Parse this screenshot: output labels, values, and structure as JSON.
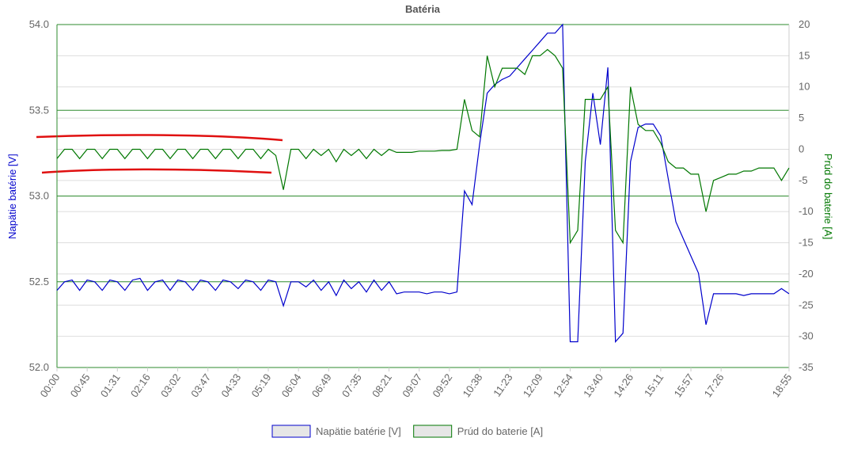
{
  "chart_data": {
    "type": "line",
    "title": "Batéria",
    "ylabel": "Napätie batérie [V]",
    "y2label": "Prúd do baterie [A]",
    "categories": [
      "00:00",
      null,
      null,
      null,
      "00:45",
      null,
      null,
      null,
      "01:31",
      null,
      null,
      null,
      "02:16",
      null,
      null,
      null,
      "03:02",
      null,
      null,
      null,
      "03:47",
      null,
      null,
      null,
      "04:33",
      null,
      null,
      null,
      "05:19",
      null,
      null,
      null,
      "06:04",
      null,
      null,
      null,
      "06:49",
      null,
      null,
      null,
      "07:35",
      null,
      null,
      null,
      "08:21",
      null,
      null,
      null,
      "09:07",
      null,
      null,
      null,
      "09:52",
      null,
      null,
      null,
      "10:38",
      null,
      null,
      null,
      "11:23",
      null,
      null,
      null,
      "12:09",
      null,
      null,
      null,
      "12:54",
      null,
      null,
      null,
      "13:40",
      null,
      null,
      null,
      "14:26",
      null,
      null,
      null,
      "15:11",
      null,
      null,
      null,
      "15:57",
      null,
      null,
      null,
      "17:26",
      null,
      null,
      null,
      null,
      null,
      null,
      null,
      null,
      "18:55"
    ],
    "series": [
      {
        "name": "Napätie batérie [V]",
        "color": "#0000cc",
        "axis": "y",
        "values": [
          52.45,
          52.5,
          52.51,
          52.45,
          52.51,
          52.5,
          52.45,
          52.51,
          52.5,
          52.45,
          52.51,
          52.52,
          52.45,
          52.5,
          52.51,
          52.45,
          52.51,
          52.5,
          52.45,
          52.51,
          52.5,
          52.45,
          52.51,
          52.5,
          52.46,
          52.51,
          52.5,
          52.45,
          52.51,
          52.5,
          52.36,
          52.5,
          52.5,
          52.47,
          52.51,
          52.45,
          52.5,
          52.42,
          52.51,
          52.46,
          52.5,
          52.44,
          52.51,
          52.45,
          52.5,
          52.43,
          52.44,
          52.44,
          52.44,
          52.43,
          52.44,
          52.44,
          52.43,
          52.44,
          53.03,
          52.95,
          53.3,
          53.6,
          53.65,
          53.68,
          53.7,
          53.75,
          53.8,
          53.85,
          53.9,
          53.95,
          53.95,
          54.0,
          52.15,
          52.15,
          53.2,
          53.6,
          53.3,
          53.75,
          52.15,
          52.2,
          53.2,
          53.4,
          53.42,
          53.42,
          53.35,
          53.1,
          52.85,
          52.75,
          52.65,
          52.55,
          52.25,
          52.43,
          52.43,
          52.43,
          52.43,
          52.42,
          52.43,
          52.43,
          52.43,
          52.43,
          52.46,
          52.43
        ]
      },
      {
        "name": "Prúd do baterie [A]",
        "color": "#007700",
        "axis": "y2",
        "values": [
          -1.5,
          0,
          0,
          -1.5,
          0,
          0,
          -1.5,
          0,
          0,
          -1.5,
          0,
          0,
          -1.5,
          0,
          0,
          -1.5,
          0,
          0,
          -1.5,
          0,
          0,
          -1.5,
          0,
          0,
          -1.5,
          0,
          0,
          -1.5,
          0,
          -1,
          -6.5,
          0,
          0,
          -1.5,
          0,
          -1,
          0,
          -2,
          0,
          -1,
          0,
          -1.5,
          0,
          -1,
          0,
          -0.5,
          -0.5,
          -0.5,
          -0.3,
          -0.3,
          -0.3,
          -0.2,
          -0.2,
          0,
          8,
          3,
          2,
          15,
          10,
          13,
          13,
          13,
          12,
          15,
          15,
          16,
          15,
          13,
          -15,
          -13,
          8,
          8,
          8,
          10,
          -13,
          -15,
          10,
          4,
          3,
          3,
          1,
          -2,
          -3,
          -3,
          -4,
          -4,
          -10,
          -5,
          -4.5,
          -4,
          -4,
          -3.5,
          -3.5,
          -3,
          -3,
          -3,
          -5,
          -3
        ]
      }
    ],
    "ylim": [
      52.0,
      54.0
    ],
    "yticks": [
      {
        "value": 52.0,
        "label": "52.0"
      },
      52.5,
      {
        "value": 53.0,
        "label": "53.0"
      },
      53.5,
      {
        "value": 54.0,
        "label": "54.0"
      }
    ],
    "y2lim": [
      -35,
      20
    ],
    "y2ticks": [
      -35,
      -30,
      -25,
      -20,
      -15,
      -10,
      -5,
      0,
      5,
      10,
      15,
      20
    ],
    "grid": true,
    "legend": "bottom"
  }
}
